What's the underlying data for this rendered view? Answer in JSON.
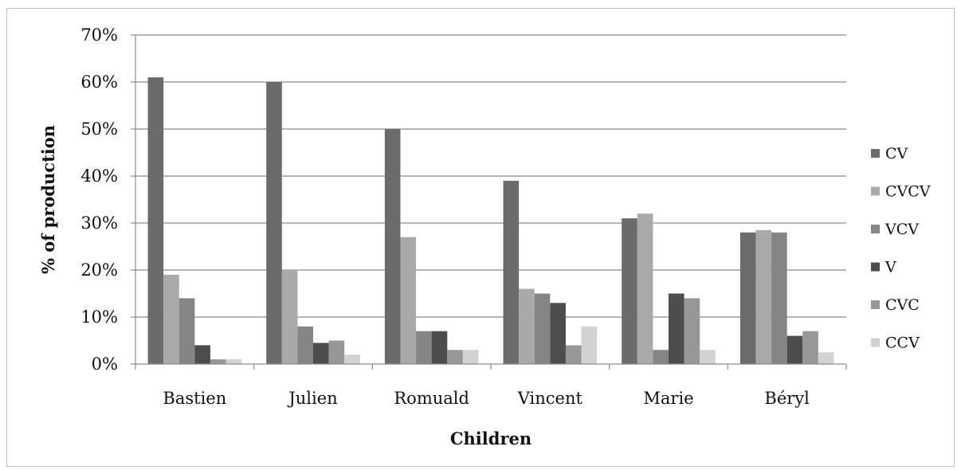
{
  "chart_data": {
    "type": "bar",
    "title": "",
    "xlabel": "Children",
    "ylabel": "% of production",
    "ylim": [
      0,
      70
    ],
    "y_ticks": [
      "0%",
      "10%",
      "20%",
      "30%",
      "40%",
      "50%",
      "60%",
      "70%"
    ],
    "y_tick_values": [
      0,
      10,
      20,
      30,
      40,
      50,
      60,
      70
    ],
    "grid": true,
    "legend_position": "right",
    "categories": [
      "Bastien",
      "Julien",
      "Romuald",
      "Vincent",
      "Marie",
      "Béryl"
    ],
    "series": [
      {
        "name": "CV",
        "color": "#6b6b6b",
        "values": [
          61,
          60,
          50,
          39,
          31,
          28
        ]
      },
      {
        "name": "CVCV",
        "color": "#a9a9a9",
        "values": [
          19,
          20,
          27,
          16,
          32,
          28.5
        ]
      },
      {
        "name": "VCV",
        "color": "#858585",
        "values": [
          14,
          8,
          7,
          15,
          3,
          28
        ]
      },
      {
        "name": "V",
        "color": "#4d4d4d",
        "values": [
          4,
          4.5,
          7,
          13,
          15,
          6
        ]
      },
      {
        "name": "CVC",
        "color": "#979797",
        "values": [
          1,
          5,
          3,
          4,
          14,
          7
        ]
      },
      {
        "name": "CCV",
        "color": "#d2d2d2",
        "values": [
          1,
          2,
          3,
          8,
          3,
          2.5
        ]
      }
    ]
  }
}
